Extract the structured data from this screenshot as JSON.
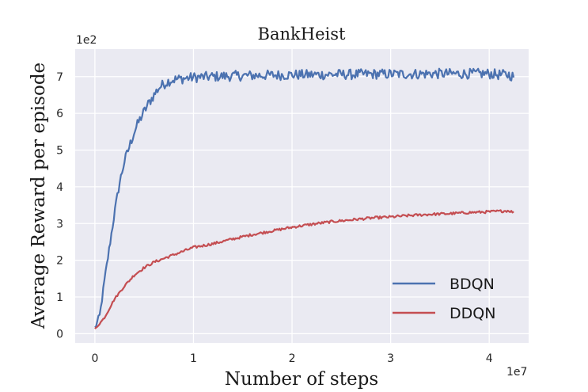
{
  "chart_data": {
    "type": "line",
    "title": "BankHeist",
    "xlabel": "Number of steps",
    "ylabel": "Average Reward per episode",
    "x_multiplier": "1e7",
    "y_multiplier": "1e2",
    "xlim": [
      -0.2,
      4.4
    ],
    "ylim": [
      -0.25,
      7.75
    ],
    "xticks": [
      0,
      1,
      2,
      3,
      4
    ],
    "yticks": [
      0,
      1,
      2,
      3,
      4,
      5,
      6,
      7
    ],
    "grid": true,
    "legend": "bottom-right",
    "series": [
      {
        "name": "BDQN",
        "color": "#4c72b0",
        "x": [
          0,
          0.05,
          0.1,
          0.15,
          0.2,
          0.25,
          0.3,
          0.35,
          0.4,
          0.45,
          0.5,
          0.55,
          0.6,
          0.65,
          0.7,
          0.75,
          0.8,
          0.9,
          1.0,
          1.2,
          1.4,
          1.6,
          1.8,
          2.0,
          2.2,
          2.4,
          2.6,
          2.8,
          3.0,
          3.2,
          3.4,
          3.6,
          3.8,
          4.0,
          4.1,
          4.2,
          4.25
        ],
        "y": [
          0.15,
          0.5,
          1.5,
          2.4,
          3.3,
          4.1,
          4.7,
          5.1,
          5.5,
          5.8,
          6.05,
          6.3,
          6.5,
          6.7,
          6.8,
          6.88,
          6.92,
          6.95,
          6.98,
          7.0,
          7.02,
          7.03,
          7.04,
          7.05,
          7.05,
          7.06,
          7.06,
          7.07,
          7.07,
          7.07,
          7.08,
          7.08,
          7.08,
          7.08,
          7.05,
          7.05,
          7.0
        ]
      },
      {
        "name": "DDQN",
        "color": "#c44e52",
        "x": [
          0,
          0.1,
          0.2,
          0.3,
          0.4,
          0.5,
          0.6,
          0.7,
          0.8,
          0.9,
          1.0,
          1.2,
          1.4,
          1.6,
          1.8,
          2.0,
          2.2,
          2.4,
          2.6,
          2.8,
          3.0,
          3.2,
          3.4,
          3.6,
          3.8,
          4.0,
          4.2,
          4.25
        ],
        "y": [
          0.12,
          0.45,
          0.95,
          1.3,
          1.6,
          1.8,
          1.95,
          2.05,
          2.15,
          2.25,
          2.35,
          2.45,
          2.58,
          2.7,
          2.8,
          2.9,
          2.98,
          3.05,
          3.1,
          3.15,
          3.18,
          3.22,
          3.25,
          3.27,
          3.3,
          3.32,
          3.35,
          3.3
        ]
      }
    ]
  }
}
